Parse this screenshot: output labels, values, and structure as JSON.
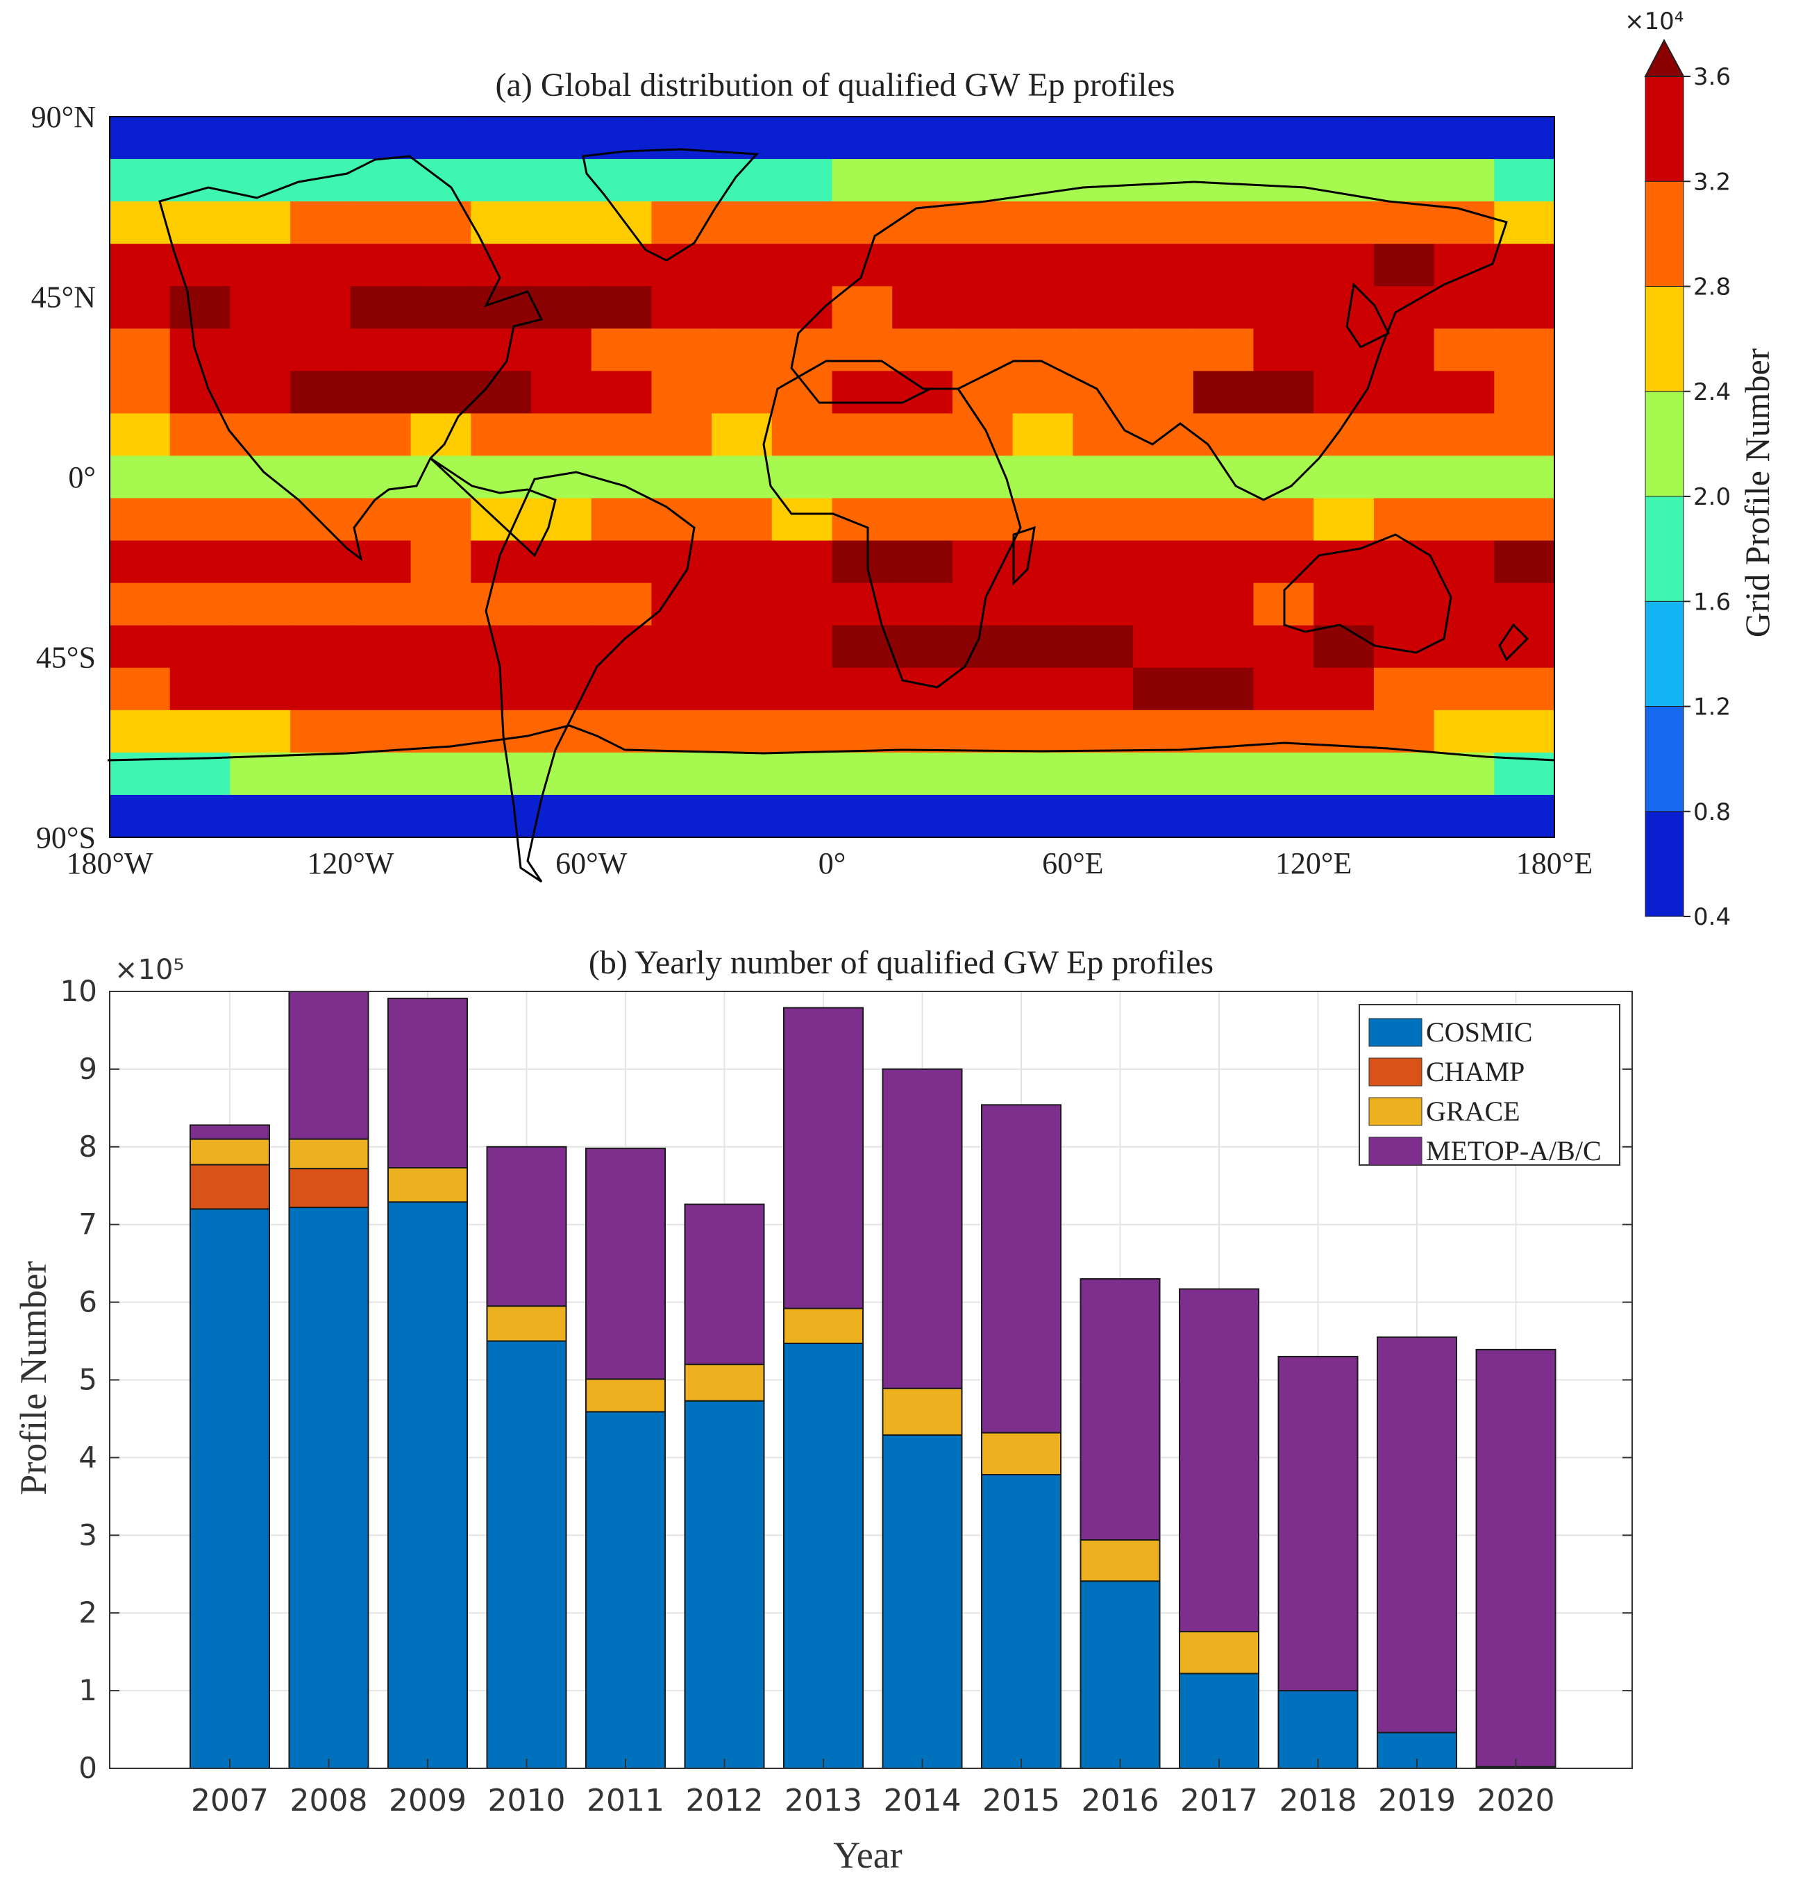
{
  "chart_data": [
    {
      "type": "heatmap",
      "title": "(a) Global distribution of qualified GW Ep profiles",
      "xlabel": "",
      "ylabel": "",
      "x_range": [
        -180,
        180
      ],
      "y_range": [
        -90,
        90
      ],
      "x_tick_labels": [
        "180°W",
        "120°W",
        "60°W",
        "0°",
        "60°E",
        "120°E",
        "180°E"
      ],
      "y_tick_labels": [
        "90°N",
        "45°N",
        "0°",
        "45°S",
        "90°S"
      ],
      "grid_note": "15° longitude by 10° latitude cells, rows listed from 90°N to 90°S, values are colorbar level indices (0=0.4-0.8 ... 8=>3.6 ×10^4)",
      "rows": [
        [
          0,
          0,
          0,
          0,
          0,
          0,
          0,
          0,
          0,
          0,
          0,
          0,
          0,
          0,
          0,
          0,
          0,
          0,
          0,
          0,
          0,
          0,
          0,
          0
        ],
        [
          3,
          3,
          3,
          3,
          3,
          3,
          3,
          3,
          3,
          3,
          3,
          3,
          4,
          4,
          4,
          4,
          4,
          4,
          4,
          4,
          4,
          4,
          4,
          3
        ],
        [
          5,
          5,
          5,
          6,
          6,
          6,
          5,
          5,
          5,
          6,
          6,
          6,
          6,
          6,
          6,
          6,
          6,
          6,
          6,
          6,
          6,
          6,
          6,
          5
        ],
        [
          7,
          7,
          7,
          7,
          7,
          7,
          7,
          7,
          7,
          7,
          7,
          7,
          7,
          7,
          7,
          7,
          7,
          7,
          7,
          7,
          7,
          8,
          7,
          7
        ],
        [
          7,
          8,
          7,
          7,
          8,
          8,
          8,
          8,
          8,
          7,
          7,
          7,
          6,
          7,
          7,
          7,
          7,
          7,
          7,
          7,
          7,
          7,
          7,
          7
        ],
        [
          6,
          7,
          7,
          7,
          7,
          7,
          7,
          7,
          6,
          6,
          6,
          6,
          6,
          6,
          6,
          6,
          6,
          6,
          6,
          7,
          7,
          7,
          6,
          6
        ],
        [
          6,
          7,
          7,
          8,
          8,
          8,
          8,
          7,
          7,
          6,
          6,
          6,
          7,
          7,
          6,
          6,
          6,
          6,
          8,
          8,
          7,
          7,
          7,
          6
        ],
        [
          5,
          6,
          6,
          6,
          6,
          5,
          6,
          6,
          6,
          6,
          5,
          6,
          6,
          6,
          6,
          5,
          6,
          6,
          6,
          6,
          6,
          6,
          6,
          6
        ],
        [
          4,
          4,
          4,
          4,
          4,
          4,
          4,
          4,
          4,
          4,
          4,
          4,
          4,
          4,
          4,
          4,
          4,
          4,
          4,
          4,
          4,
          4,
          4,
          4
        ],
        [
          6,
          6,
          6,
          6,
          6,
          6,
          5,
          5,
          6,
          6,
          6,
          5,
          6,
          6,
          6,
          6,
          6,
          6,
          6,
          6,
          5,
          6,
          6,
          6
        ],
        [
          7,
          7,
          7,
          7,
          7,
          6,
          7,
          7,
          7,
          7,
          7,
          7,
          8,
          8,
          7,
          7,
          7,
          7,
          7,
          7,
          7,
          7,
          7,
          8
        ],
        [
          6,
          6,
          6,
          6,
          6,
          6,
          6,
          6,
          6,
          7,
          7,
          7,
          7,
          7,
          7,
          7,
          7,
          7,
          7,
          6,
          7,
          7,
          7,
          7
        ],
        [
          7,
          7,
          7,
          7,
          7,
          7,
          7,
          7,
          7,
          7,
          7,
          7,
          8,
          8,
          8,
          8,
          8,
          7,
          7,
          7,
          8,
          7,
          7,
          7
        ],
        [
          6,
          7,
          7,
          7,
          7,
          7,
          7,
          7,
          7,
          7,
          7,
          7,
          7,
          7,
          7,
          7,
          7,
          8,
          8,
          7,
          7,
          6,
          6,
          6
        ],
        [
          5,
          5,
          5,
          6,
          6,
          6,
          6,
          6,
          6,
          6,
          6,
          6,
          6,
          6,
          6,
          6,
          6,
          6,
          6,
          6,
          6,
          6,
          5,
          5
        ],
        [
          3,
          3,
          4,
          4,
          4,
          4,
          4,
          4,
          4,
          4,
          4,
          4,
          4,
          4,
          4,
          4,
          4,
          4,
          4,
          4,
          4,
          4,
          4,
          3
        ],
        [
          0,
          0,
          0,
          0,
          0,
          0,
          0,
          0,
          0,
          0,
          0,
          0,
          0,
          0,
          0,
          0,
          0,
          0,
          0,
          0,
          0,
          0,
          0,
          0
        ]
      ],
      "colorbar": {
        "label": "Grid Profile Number",
        "multiplier": "×10⁴",
        "tick_labels": [
          "0.4",
          "0.8",
          "1.2",
          "1.6",
          "2.0",
          "2.4",
          "2.8",
          "3.2",
          "3.6"
        ],
        "range": [
          0.4,
          3.6
        ],
        "colors": [
          "#0a1fd0",
          "#1668ef",
          "#14b4f4",
          "#3ef6b0",
          "#a6f94e",
          "#ffcc00",
          "#ff6600",
          "#cc0000",
          "#8b0000"
        ]
      }
    },
    {
      "type": "bar",
      "stacked": true,
      "title": "(b) Yearly number of qualified GW Ep profiles",
      "xlabel": "Year",
      "ylabel": "Profile Number",
      "y_multiplier": "×10⁵",
      "ylim": [
        0,
        10
      ],
      "yticks": [
        "0",
        "1",
        "2",
        "3",
        "4",
        "5",
        "6",
        "7",
        "8",
        "9",
        "10"
      ],
      "categories": [
        "2007",
        "2008",
        "2009",
        "2010",
        "2011",
        "2012",
        "2013",
        "2014",
        "2015",
        "2016",
        "2017",
        "2018",
        "2019",
        "2020"
      ],
      "series": [
        {
          "name": "COSMIC",
          "color": "#0072bd",
          "values": [
            7.2,
            7.22,
            7.29,
            5.5,
            4.59,
            4.73,
            5.47,
            4.29,
            3.78,
            2.41,
            1.22,
            1.0,
            0.46,
            0.02
          ]
        },
        {
          "name": "CHAMP",
          "color": "#d95319",
          "values": [
            0.57,
            0.5,
            0,
            0,
            0,
            0,
            0,
            0,
            0,
            0,
            0,
            0,
            0,
            0
          ]
        },
        {
          "name": "GRACE",
          "color": "#edb120",
          "values": [
            0.33,
            0.38,
            0.44,
            0.45,
            0.42,
            0.47,
            0.45,
            0.6,
            0.54,
            0.53,
            0.54,
            0,
            0,
            0
          ]
        },
        {
          "name": "METOP-A/B/C",
          "color": "#7e2f8e",
          "values": [
            0.18,
            1.9,
            2.18,
            2.05,
            2.97,
            2.06,
            3.87,
            4.11,
            4.22,
            3.36,
            4.41,
            4.3,
            5.09,
            5.37
          ]
        }
      ],
      "legend_position": "top-right"
    }
  ]
}
